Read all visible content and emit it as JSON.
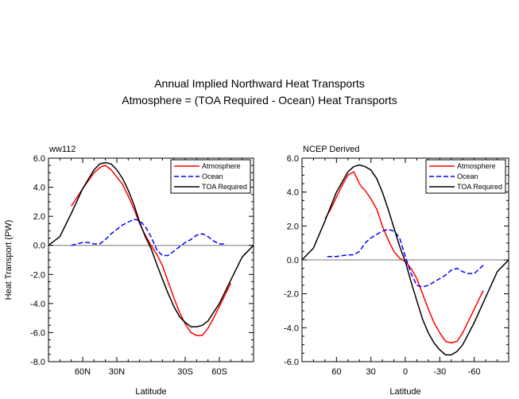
{
  "figure": {
    "title_line1": "Annual Implied Northward Heat Transports",
    "title_line2": "Atmosphere = (TOA Required - Ocean) Heat Transports"
  },
  "chart_data": [
    {
      "type": "line",
      "panel_label": "ww112",
      "xlabel": "Latitude",
      "ylabel": "Heat Transport (PW)",
      "xlim": [
        90,
        -90
      ],
      "ylim": [
        -8.0,
        6.0
      ],
      "x_ticks": [
        60,
        30,
        -30,
        -60
      ],
      "x_tick_labels": [
        "60N",
        "30N",
        "30S",
        "60S"
      ],
      "y_ticks": [
        6.0,
        4.0,
        2.0,
        0.0,
        -2.0,
        -4.0,
        -6.0,
        -8.0
      ],
      "y_tick_labels": [
        "6.0",
        "4.0",
        "2.0",
        "0.0",
        "-2.0",
        "-4.0",
        "-6.0",
        "-8.0"
      ],
      "zero_line": true,
      "legend_position": "top-right",
      "series": [
        {
          "name": "Atmosphere",
          "color": "#ff0000",
          "dash": "solid",
          "x": [
            70,
            60,
            50,
            44,
            40,
            35,
            30,
            25,
            20,
            15,
            10,
            5,
            0,
            -5,
            -10,
            -15,
            -20,
            -25,
            -30,
            -35,
            -40,
            -45,
            -50,
            -55,
            -60,
            -65,
            -70
          ],
          "y": [
            2.7,
            3.9,
            5.0,
            5.4,
            5.5,
            5.2,
            4.7,
            4.2,
            3.4,
            2.5,
            1.5,
            0.7,
            0.0,
            -0.6,
            -1.4,
            -2.5,
            -3.6,
            -4.6,
            -5.4,
            -6.0,
            -6.2,
            -6.2,
            -5.7,
            -5.0,
            -4.2,
            -3.4,
            -2.6
          ]
        },
        {
          "name": "Ocean",
          "color": "#0000ff",
          "dash": "dashed",
          "x": [
            70,
            65,
            60,
            55,
            50,
            45,
            40,
            35,
            30,
            25,
            20,
            15,
            10,
            5,
            0,
            -5,
            -10,
            -15,
            -20,
            -25,
            -30,
            -35,
            -40,
            -45,
            -50,
            -55,
            -60,
            -65
          ],
          "y": [
            0.0,
            0.1,
            0.2,
            0.2,
            0.1,
            0.1,
            0.4,
            0.8,
            1.1,
            1.4,
            1.6,
            1.8,
            1.7,
            1.3,
            0.6,
            -0.3,
            -0.7,
            -0.7,
            -0.4,
            -0.1,
            0.2,
            0.4,
            0.7,
            0.8,
            0.6,
            0.3,
            0.1,
            0.1
          ]
        },
        {
          "name": "TOA Required",
          "color": "#000000",
          "dash": "solid",
          "x": [
            90,
            80,
            70,
            60,
            50,
            45,
            40,
            35,
            30,
            25,
            20,
            15,
            10,
            5,
            0,
            -5,
            -10,
            -15,
            -20,
            -25,
            -30,
            -35,
            -40,
            -45,
            -50,
            -60,
            -70,
            -80,
            -90
          ],
          "y": [
            0.0,
            0.6,
            2.2,
            3.9,
            5.2,
            5.6,
            5.7,
            5.6,
            5.2,
            4.6,
            3.8,
            2.8,
            1.6,
            0.6,
            -0.2,
            -1.3,
            -2.3,
            -3.3,
            -4.2,
            -4.9,
            -5.3,
            -5.6,
            -5.6,
            -5.5,
            -5.2,
            -4.0,
            -2.4,
            -0.8,
            0.0
          ]
        }
      ]
    },
    {
      "type": "line",
      "panel_label": "NCEP Derived",
      "xlabel": "Latitude",
      "ylabel": "",
      "xlim": [
        90,
        -90
      ],
      "ylim": [
        -6.0,
        6.0
      ],
      "x_ticks": [
        60,
        30,
        0,
        -30,
        -60
      ],
      "x_tick_labels": [
        "60",
        "30",
        "0",
        "-30",
        "-60"
      ],
      "y_ticks": [
        6.0,
        4.0,
        2.0,
        0.0,
        -2.0,
        -4.0,
        -6.0
      ],
      "y_tick_labels": [
        "6.0",
        "4.0",
        "2.0",
        "0.0",
        "-2.0",
        "-4.0",
        "-6.0"
      ],
      "zero_line": true,
      "legend_position": "top-right",
      "series": [
        {
          "name": "Atmosphere",
          "color": "#ff0000",
          "dash": "solid",
          "x": [
            70,
            65,
            60,
            55,
            50,
            45,
            42,
            40,
            38,
            35,
            30,
            25,
            20,
            15,
            10,
            5,
            0,
            -5,
            -10,
            -15,
            -20,
            -25,
            -30,
            -35,
            -40,
            -45,
            -50,
            -55,
            -60,
            -65,
            -68
          ],
          "y": [
            2.4,
            3.0,
            3.7,
            4.4,
            5.0,
            5.2,
            4.8,
            4.5,
            4.3,
            4.1,
            3.6,
            3.0,
            2.0,
            1.2,
            0.5,
            0.1,
            -0.1,
            -0.5,
            -1.1,
            -2.0,
            -2.9,
            -3.7,
            -4.3,
            -4.8,
            -4.9,
            -4.8,
            -4.3,
            -3.6,
            -2.9,
            -2.2,
            -1.8
          ]
        },
        {
          "name": "Ocean",
          "color": "#0000ff",
          "dash": "dashed",
          "x": [
            68,
            60,
            50,
            45,
            40,
            35,
            30,
            25,
            20,
            15,
            10,
            5,
            0,
            -5,
            -10,
            -15,
            -20,
            -25,
            -30,
            -35,
            -40,
            -45,
            -50,
            -55,
            -60,
            -65,
            -68
          ],
          "y": [
            0.2,
            0.2,
            0.3,
            0.3,
            0.5,
            1.0,
            1.3,
            1.5,
            1.7,
            1.8,
            1.7,
            1.3,
            0.2,
            -0.8,
            -1.5,
            -1.6,
            -1.5,
            -1.3,
            -1.1,
            -0.9,
            -0.6,
            -0.5,
            -0.7,
            -0.8,
            -0.8,
            -0.5,
            -0.3
          ]
        },
        {
          "name": "TOA Required",
          "color": "#000000",
          "dash": "solid",
          "x": [
            90,
            80,
            70,
            60,
            50,
            45,
            40,
            35,
            30,
            25,
            20,
            15,
            10,
            5,
            0,
            -5,
            -10,
            -15,
            -20,
            -25,
            -30,
            -35,
            -40,
            -45,
            -50,
            -60,
            -70,
            -80,
            -90
          ],
          "y": [
            0.0,
            0.7,
            2.3,
            4.0,
            5.2,
            5.5,
            5.6,
            5.5,
            5.3,
            4.8,
            4.0,
            3.0,
            1.9,
            0.8,
            -0.1,
            -1.3,
            -2.4,
            -3.5,
            -4.3,
            -4.9,
            -5.3,
            -5.6,
            -5.6,
            -5.4,
            -5.0,
            -3.7,
            -2.2,
            -0.7,
            0.0
          ]
        }
      ]
    }
  ]
}
